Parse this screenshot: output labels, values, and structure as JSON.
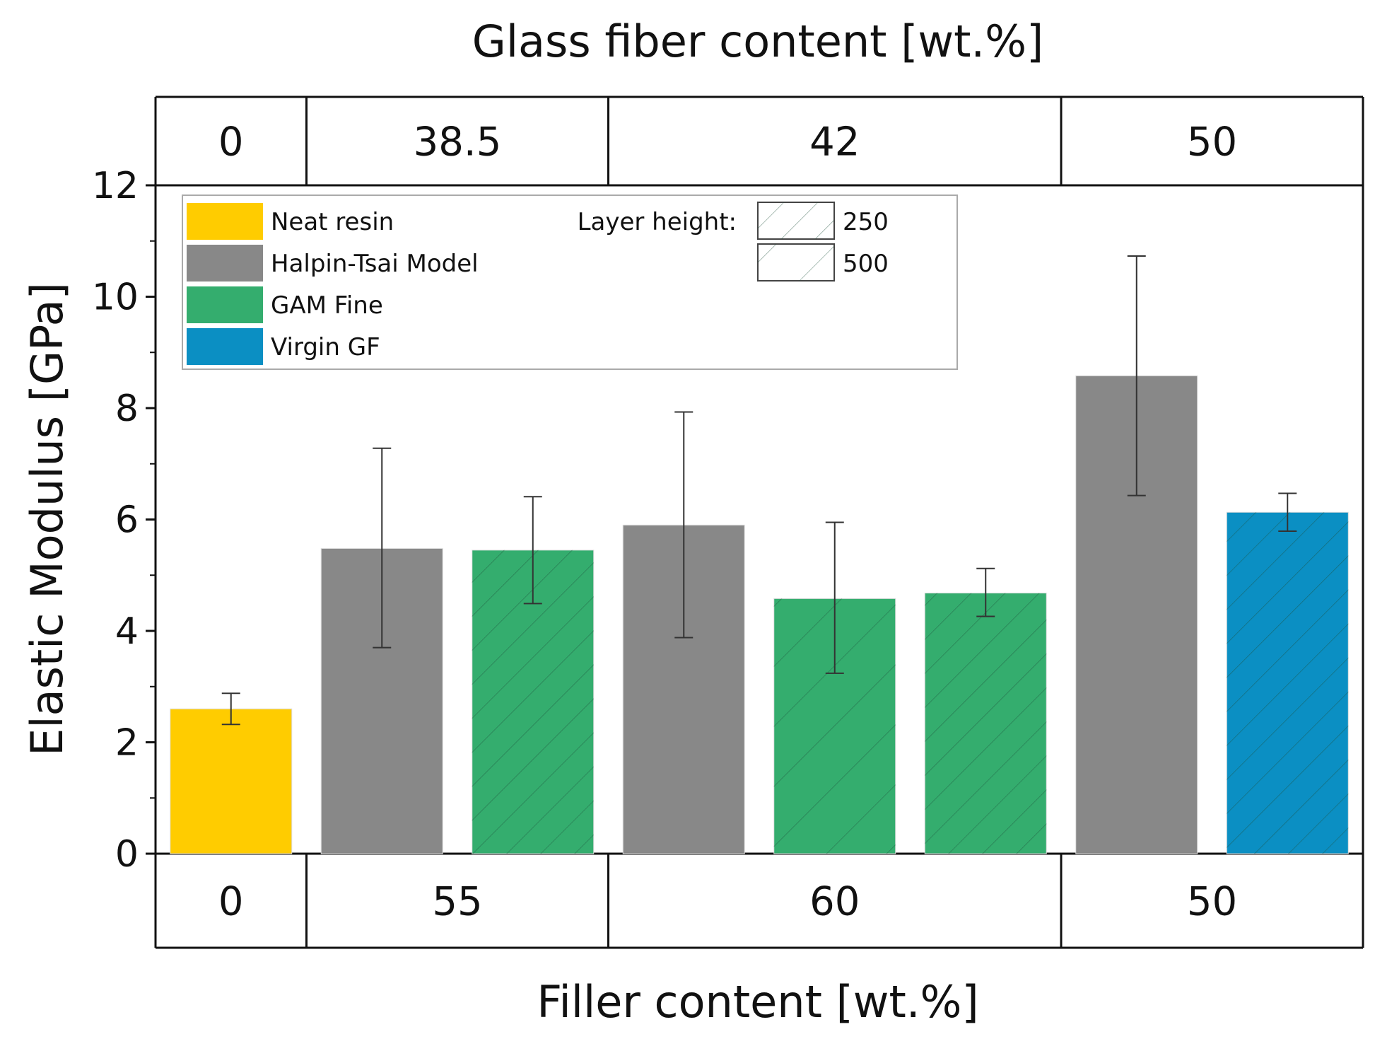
{
  "chart_data": {
    "type": "bar",
    "title": "Glass fiber content [wt.%]",
    "xlabel": "Filler content [wt.%]",
    "ylabel": "Elastic Modulus [GPa]",
    "ylim": [
      0,
      12
    ],
    "yticks": [
      "0",
      "2",
      "4",
      "6",
      "8",
      "10",
      "12"
    ],
    "bars": [
      {
        "series": "Neat resin",
        "layer_height": "",
        "value": 2.6,
        "err_low": 2.32,
        "err_high": 2.88
      },
      {
        "series": "Halpin-Tsai Model",
        "layer_height": "",
        "value": 5.48,
        "err_low": 3.7,
        "err_high": 7.28
      },
      {
        "series": "GAM Fine",
        "layer_height": "250",
        "value": 5.45,
        "err_low": 4.49,
        "err_high": 6.41
      },
      {
        "series": "Halpin-Tsai Model",
        "layer_height": "",
        "value": 5.9,
        "err_low": 3.88,
        "err_high": 7.93
      },
      {
        "series": "GAM Fine",
        "layer_height": "500",
        "value": 4.58,
        "err_low": 3.24,
        "err_high": 5.95
      },
      {
        "series": "GAM Fine",
        "layer_height": "250",
        "value": 4.68,
        "err_low": 4.26,
        "err_high": 5.12
      },
      {
        "series": "Halpin-Tsai Model",
        "layer_height": "",
        "value": 8.58,
        "err_low": 6.43,
        "err_high": 10.73
      },
      {
        "series": "Virgin GF",
        "layer_height": "250",
        "value": 6.13,
        "err_low": 5.79,
        "err_high": 6.47
      }
    ],
    "top_axis_groups": [
      {
        "label": "0",
        "bars": 1
      },
      {
        "label": "38.5",
        "bars": 2
      },
      {
        "label": "42",
        "bars": 3
      },
      {
        "label": "50",
        "bars": 2
      }
    ],
    "bottom_axis_groups": [
      {
        "label": "0",
        "bars": 1
      },
      {
        "label": "55",
        "bars": 2
      },
      {
        "label": "60",
        "bars": 3
      },
      {
        "label": "50",
        "bars": 2
      }
    ],
    "legend": {
      "placement": "top-left",
      "series": [
        {
          "name": "Neat resin",
          "color": "#ffcc00"
        },
        {
          "name": "Halpin-Tsai Model",
          "color": "#888888"
        },
        {
          "name": "GAM Fine",
          "color": "#34ad6e"
        },
        {
          "name": "Virgin GF",
          "color": "#0b8fc3"
        }
      ],
      "pattern_title": "Layer height:",
      "patterns": [
        {
          "label": "250",
          "type": "dense-hatch"
        },
        {
          "label": "500",
          "type": "sparse-hatch"
        }
      ]
    }
  }
}
